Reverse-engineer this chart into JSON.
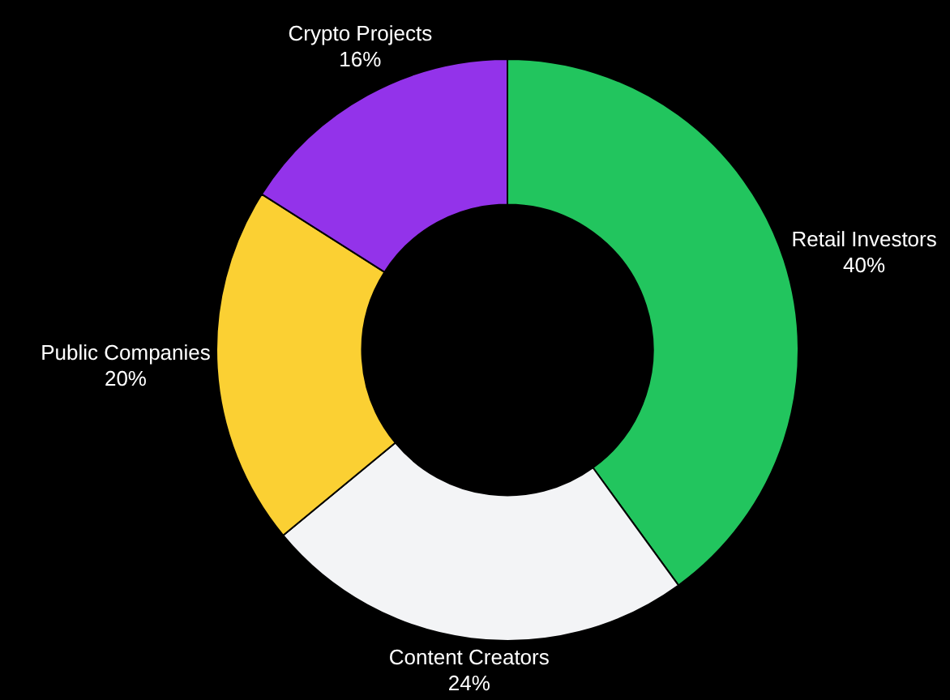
{
  "chart_data": {
    "type": "donut",
    "categories": [
      "Retail Investors",
      "Content Creators",
      "Public Companies",
      "Crypto Projects"
    ],
    "values": [
      40,
      24,
      20,
      16
    ],
    "value_labels": [
      "40%",
      "24%",
      "20%",
      "16%"
    ],
    "colors": [
      "#22c55e",
      "#f3f4f6",
      "#fbd033",
      "#9333ea"
    ],
    "legend": false
  }
}
